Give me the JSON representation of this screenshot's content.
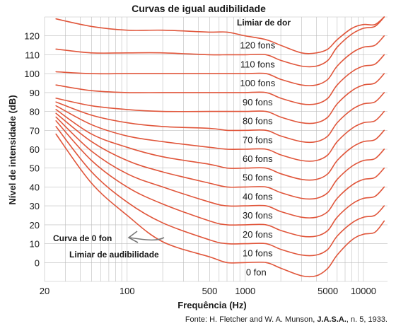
{
  "chart_data": {
    "type": "line",
    "title": "Curvas de igual audibilidade",
    "xlabel": "Frequência (Hz)",
    "ylabel": "Nível de intensidade (dB)",
    "x_scale": "log",
    "xlim": [
      20,
      16000
    ],
    "ylim": [
      -10,
      130
    ],
    "x_ticks": [
      "20",
      "100",
      "500",
      "1000",
      "5000",
      "10000"
    ],
    "y_ticks": [
      "0",
      "10",
      "20",
      "30",
      "40",
      "50",
      "60",
      "70",
      "80",
      "90",
      "100",
      "110",
      "120"
    ],
    "grid": true,
    "x": [
      25,
      50,
      100,
      200,
      500,
      700,
      1000,
      1500,
      2000,
      3000,
      4000,
      5000,
      6000,
      8000,
      10000,
      12500,
      15000
    ],
    "series": [
      {
        "name": "0 fon",
        "values": [
          68,
          42,
          25,
          11,
          3,
          0,
          0,
          0,
          -3,
          -7,
          -7,
          -3,
          4,
          12,
          15,
          16,
          22
        ]
      },
      {
        "name": "10 fons",
        "values": [
          72,
          48,
          32,
          21,
          12,
          10,
          10,
          10,
          7,
          4,
          4,
          7,
          14,
          21,
          24,
          25,
          30
        ]
      },
      {
        "name": "20 fons",
        "values": [
          75,
          54,
          40,
          31,
          22,
          20,
          20,
          20,
          17,
          14,
          14,
          17,
          24,
          31,
          34,
          35,
          40
        ]
      },
      {
        "name": "30 fons",
        "values": [
          77,
          59,
          47,
          40,
          32,
          30,
          30,
          30,
          27,
          24,
          24,
          27,
          34,
          41,
          44,
          45,
          50
        ]
      },
      {
        "name": "40 fons",
        "values": [
          79,
          64,
          54,
          48,
          42,
          40,
          40,
          40,
          37,
          34,
          34,
          37,
          44,
          51,
          54,
          55,
          60
        ]
      },
      {
        "name": "50 fons",
        "values": [
          81,
          68,
          61,
          56,
          52,
          50,
          50,
          50,
          47,
          44,
          44,
          47,
          54,
          61,
          64,
          65,
          70
        ]
      },
      {
        "name": "60 fons",
        "values": [
          83,
          73,
          67,
          64,
          61,
          60,
          60,
          60,
          57,
          54,
          54,
          57,
          64,
          71,
          74,
          75,
          80
        ]
      },
      {
        "name": "70 fons",
        "values": [
          85,
          78,
          74,
          72,
          71,
          70,
          70,
          70,
          67,
          64,
          64,
          67,
          74,
          81,
          84,
          85,
          90
        ]
      },
      {
        "name": "80 fons",
        "values": [
          87,
          83,
          81,
          80,
          80,
          80,
          80,
          80,
          77,
          74,
          74,
          77,
          84,
          91,
          94,
          95,
          100
        ]
      },
      {
        "name": "90 fons",
        "values": [
          94,
          91,
          90,
          90,
          90,
          90,
          90,
          90,
          87,
          84,
          84,
          87,
          94,
          101,
          104,
          105,
          110
        ]
      },
      {
        "name": "100 fons",
        "values": [
          101,
          100,
          100,
          100,
          100,
          100,
          100,
          100,
          97,
          94,
          94,
          97,
          104,
          111,
          114,
          115,
          120
        ]
      },
      {
        "name": "110 fons",
        "values": [
          113,
          111,
          111,
          111,
          110,
          110,
          110,
          110,
          107,
          104,
          104,
          107,
          114,
          121,
          124,
          125,
          130
        ]
      },
      {
        "name": "120 fons",
        "values": [
          129,
          125,
          123,
          123,
          122,
          122,
          120,
          118,
          115,
          111,
          111,
          113,
          118,
          124,
          126,
          126,
          130
        ]
      }
    ],
    "annotations": [
      "Limiar de dor",
      "Curva de 0 fon",
      "Limiar de audibilidade"
    ]
  },
  "curve_labels": [
    "0 fon",
    "10 fons",
    "20 fons",
    "30 fons",
    "40 fons",
    "50 fons",
    "60 fons",
    "70 fons",
    "80 fons",
    "90 fons",
    "100 fons",
    "110 fons",
    "120 fons"
  ],
  "source": {
    "prefix": "Fonte: H. Fletcher and W. A. Munson, ",
    "journal": "J.A.S.A.",
    "suffix": ", n. 5, 1933."
  },
  "colors": {
    "curve": "#e0553a",
    "grid": "#bdbdbd",
    "text": "#1a1a1a"
  }
}
